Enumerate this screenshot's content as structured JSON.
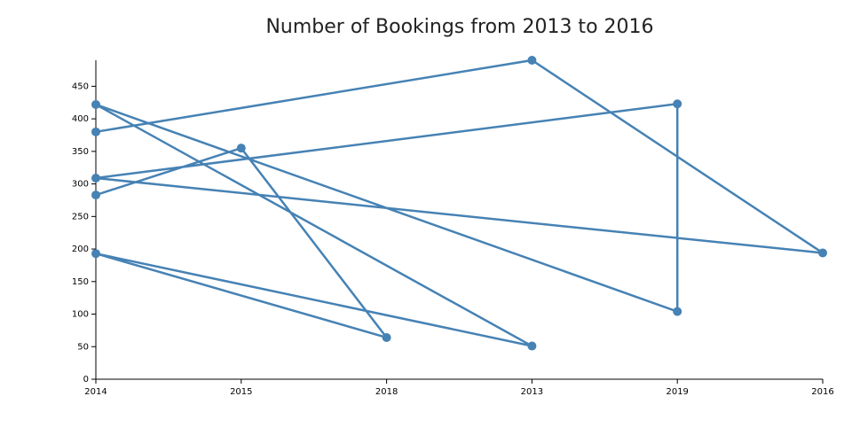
{
  "chart_data": {
    "type": "line",
    "title": "Number of Bookings from 2013 to 2016",
    "x": [
      "2014",
      "2015",
      "2018",
      "2014",
      "2013",
      "2014",
      "2019",
      "2019",
      "2014",
      "2016",
      "2013",
      "2014"
    ],
    "values": [
      283,
      355,
      64,
      193,
      51,
      422,
      104,
      423,
      309,
      194,
      490,
      380
    ],
    "color": "#4682b4",
    "ylim": [
      0,
      490
    ],
    "yticks": [
      0,
      50,
      100,
      150,
      200,
      250,
      300,
      350,
      400,
      450
    ],
    "grid": false
  }
}
